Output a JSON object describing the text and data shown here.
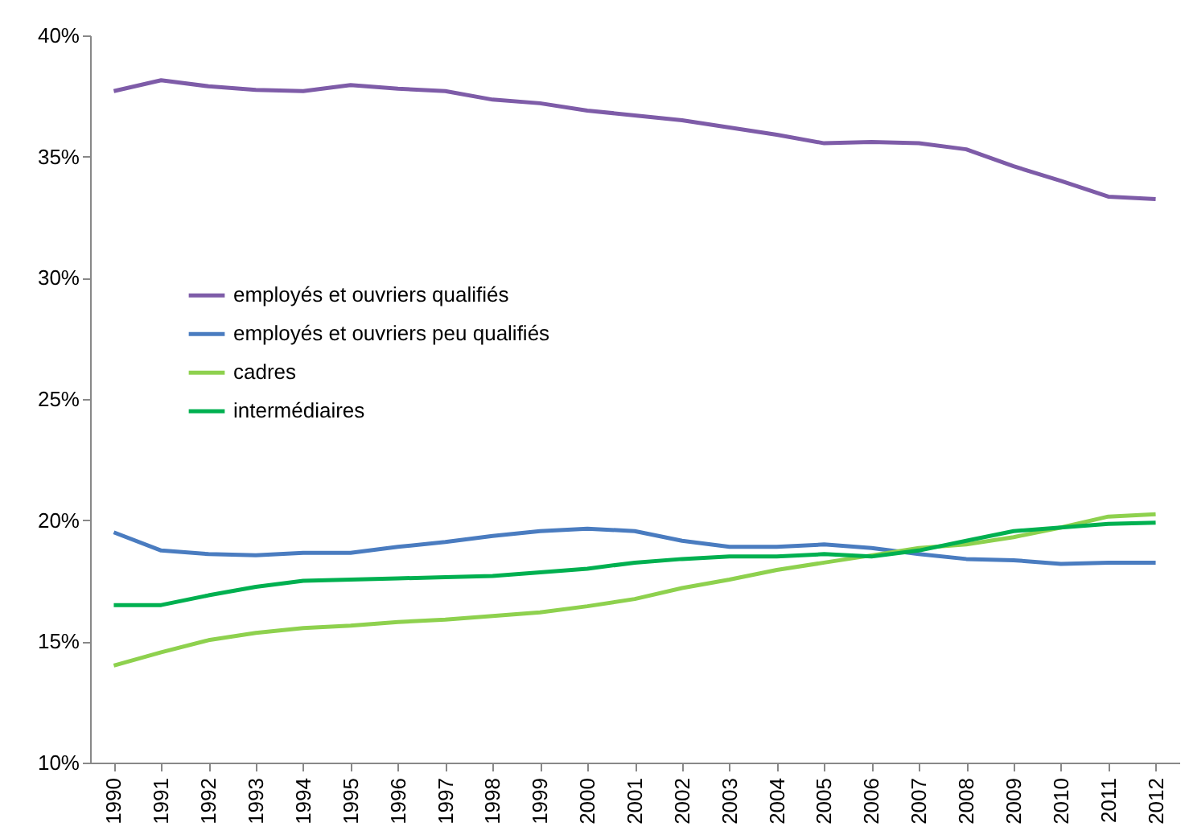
{
  "chart_data": {
    "type": "line",
    "categories": [
      "1990",
      "1991",
      "1992",
      "1993",
      "1994",
      "1995",
      "1996",
      "1997",
      "1998",
      "1999",
      "2000",
      "2001",
      "2002",
      "2003",
      "2004",
      "2005",
      "2006",
      "2007",
      "2008",
      "2009",
      "2010",
      "2011",
      "2012"
    ],
    "series": [
      {
        "name": "employés et ouvriers qualifiés",
        "color": "#7e5ca8",
        "values": [
          37.7,
          38.15,
          37.9,
          37.75,
          37.7,
          37.95,
          37.8,
          37.7,
          37.35,
          37.2,
          36.9,
          36.7,
          36.5,
          36.2,
          35.9,
          35.55,
          35.6,
          35.55,
          35.3,
          34.6,
          34.0,
          33.35,
          33.25
        ]
      },
      {
        "name": "employés et ouvriers peu qualifiés",
        "color": "#4a7cc0",
        "values": [
          19.5,
          18.75,
          18.6,
          18.55,
          18.65,
          18.65,
          18.9,
          19.1,
          19.35,
          19.55,
          19.65,
          19.55,
          19.15,
          18.9,
          18.9,
          19.0,
          18.85,
          18.6,
          18.4,
          18.35,
          18.2,
          18.25,
          18.25
        ]
      },
      {
        "name": "cadres",
        "color": "#8ed14e",
        "values": [
          14.0,
          14.55,
          15.05,
          15.35,
          15.55,
          15.65,
          15.8,
          15.9,
          16.05,
          16.2,
          16.45,
          16.75,
          17.2,
          17.55,
          17.95,
          18.25,
          18.55,
          18.85,
          19.0,
          19.3,
          19.7,
          20.15,
          20.25
        ]
      },
      {
        "name": "intermédiaires",
        "color": "#00b050",
        "values": [
          16.5,
          16.5,
          16.9,
          17.25,
          17.5,
          17.55,
          17.6,
          17.65,
          17.7,
          17.85,
          18.0,
          18.25,
          18.4,
          18.5,
          18.5,
          18.6,
          18.5,
          18.75,
          19.15,
          19.55,
          19.7,
          19.85,
          19.9
        ]
      }
    ],
    "ylim": [
      10,
      40
    ],
    "yticks": [
      {
        "value": 10,
        "label": "10%"
      },
      {
        "value": 15,
        "label": "15%"
      },
      {
        "value": 20,
        "label": "20%"
      },
      {
        "value": 25,
        "label": "25%"
      },
      {
        "value": 30,
        "label": "30%"
      },
      {
        "value": 35,
        "label": "35%"
      },
      {
        "value": 40,
        "label": "40%"
      }
    ],
    "grid": false,
    "legend": "left"
  }
}
